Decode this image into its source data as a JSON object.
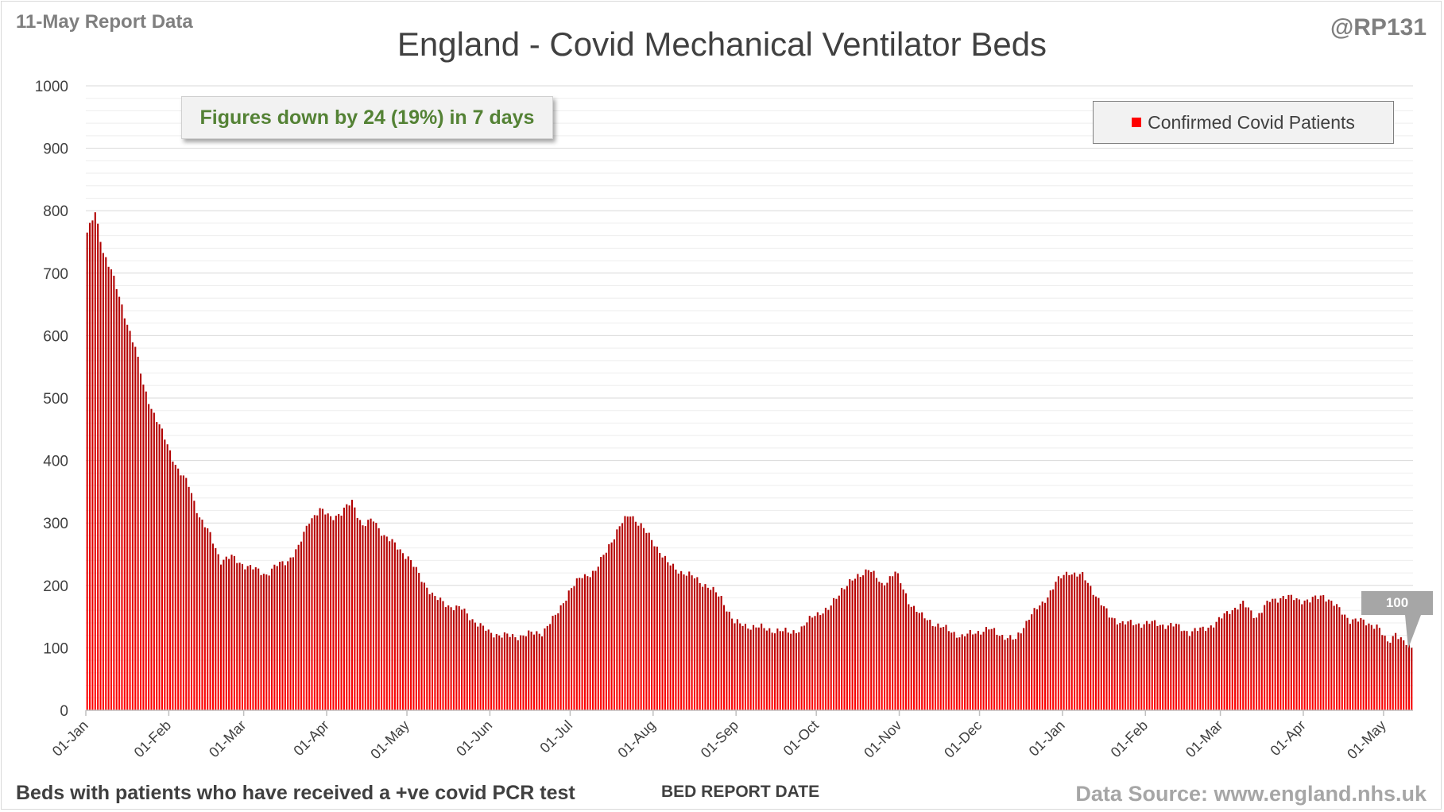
{
  "report_label": "11-May Report Data",
  "handle": "@RP131",
  "footnote": "Beds with patients who have received a +ve covid PCR test",
  "source": "Data Source: www.england.nhs.uk",
  "callout": "Figures down by 24 (19%) in 7 days",
  "colors": {
    "bar_top": "#c00000",
    "bar_bottom": "#ff0000",
    "callout_text": "#548235",
    "label_box": "#a6a6a6"
  },
  "chart_data": {
    "type": "bar",
    "title": "England - Covid Mechanical Ventilator Beds",
    "xlabel": "BED REPORT DATE",
    "ylabel": "",
    "ylim": [
      0,
      1000
    ],
    "yticks": [
      0,
      100,
      200,
      300,
      400,
      500,
      600,
      700,
      800,
      900,
      1000
    ],
    "x_start": "2021-01-01",
    "x_end": "2022-05-11",
    "xtick_labels": [
      "01-Jan",
      "01-Feb",
      "01-Mar",
      "01-Apr",
      "01-May",
      "01-Jun",
      "01-Jul",
      "01-Aug",
      "01-Sep",
      "01-Oct",
      "01-Nov",
      "01-Dec",
      "01-Jan",
      "01-Feb",
      "01-Mar",
      "01-Apr",
      "01-May"
    ],
    "xtick_dates": [
      "2021-01-01",
      "2021-02-01",
      "2021-03-01",
      "2021-04-01",
      "2021-05-01",
      "2021-06-01",
      "2021-07-01",
      "2021-08-01",
      "2021-09-01",
      "2021-10-01",
      "2021-11-01",
      "2021-12-01",
      "2022-01-01",
      "2022-02-01",
      "2022-03-01",
      "2022-04-01",
      "2022-05-01"
    ],
    "series": [
      {
        "name": "Confirmed Covid Patients",
        "points": [
          [
            "2021-01-01",
            765
          ],
          [
            "2021-01-04",
            795
          ],
          [
            "2021-01-07",
            735
          ],
          [
            "2021-01-10",
            705
          ],
          [
            "2021-01-13",
            660
          ],
          [
            "2021-01-16",
            620
          ],
          [
            "2021-01-19",
            580
          ],
          [
            "2021-01-22",
            520
          ],
          [
            "2021-01-25",
            485
          ],
          [
            "2021-01-28",
            455
          ],
          [
            "2021-01-31",
            425
          ],
          [
            "2021-02-04",
            385
          ],
          [
            "2021-02-08",
            360
          ],
          [
            "2021-02-12",
            310
          ],
          [
            "2021-02-16",
            280
          ],
          [
            "2021-02-20",
            240
          ],
          [
            "2021-02-24",
            245
          ],
          [
            "2021-03-01",
            232
          ],
          [
            "2021-03-05",
            225
          ],
          [
            "2021-03-09",
            218
          ],
          [
            "2021-03-13",
            232
          ],
          [
            "2021-03-17",
            240
          ],
          [
            "2021-03-21",
            260
          ],
          [
            "2021-03-25",
            305
          ],
          [
            "2021-03-29",
            320
          ],
          [
            "2021-04-02",
            310
          ],
          [
            "2021-04-06",
            315
          ],
          [
            "2021-04-10",
            335
          ],
          [
            "2021-04-14",
            295
          ],
          [
            "2021-04-18",
            305
          ],
          [
            "2021-04-22",
            280
          ],
          [
            "2021-04-26",
            265
          ],
          [
            "2021-05-01",
            245
          ],
          [
            "2021-05-06",
            210
          ],
          [
            "2021-05-11",
            180
          ],
          [
            "2021-05-16",
            168
          ],
          [
            "2021-05-21",
            162
          ],
          [
            "2021-05-26",
            142
          ],
          [
            "2021-05-31",
            125
          ],
          [
            "2021-06-05",
            120
          ],
          [
            "2021-06-10",
            118
          ],
          [
            "2021-06-15",
            122
          ],
          [
            "2021-06-20",
            125
          ],
          [
            "2021-06-25",
            150
          ],
          [
            "2021-06-30",
            190
          ],
          [
            "2021-07-05",
            215
          ],
          [
            "2021-07-10",
            222
          ],
          [
            "2021-07-15",
            265
          ],
          [
            "2021-07-20",
            300
          ],
          [
            "2021-07-23",
            315
          ],
          [
            "2021-07-27",
            295
          ],
          [
            "2021-08-01",
            268
          ],
          [
            "2021-08-06",
            235
          ],
          [
            "2021-08-11",
            222
          ],
          [
            "2021-08-16",
            212
          ],
          [
            "2021-08-21",
            198
          ],
          [
            "2021-08-26",
            180
          ],
          [
            "2021-08-31",
            140
          ],
          [
            "2021-09-05",
            135
          ],
          [
            "2021-09-10",
            132
          ],
          [
            "2021-09-15",
            128
          ],
          [
            "2021-09-20",
            125
          ],
          [
            "2021-09-25",
            130
          ],
          [
            "2021-09-30",
            155
          ],
          [
            "2021-10-05",
            160
          ],
          [
            "2021-10-10",
            195
          ],
          [
            "2021-10-15",
            210
          ],
          [
            "2021-10-20",
            228
          ],
          [
            "2021-10-25",
            200
          ],
          [
            "2021-10-30",
            222
          ],
          [
            "2021-11-04",
            175
          ],
          [
            "2021-11-09",
            150
          ],
          [
            "2021-11-14",
            138
          ],
          [
            "2021-11-19",
            128
          ],
          [
            "2021-11-24",
            118
          ],
          [
            "2021-11-29",
            125
          ],
          [
            "2021-12-04",
            130
          ],
          [
            "2021-12-09",
            120
          ],
          [
            "2021-12-14",
            112
          ],
          [
            "2021-12-19",
            150
          ],
          [
            "2021-12-24",
            170
          ],
          [
            "2021-12-29",
            205
          ],
          [
            "2022-01-03",
            222
          ],
          [
            "2022-01-08",
            215
          ],
          [
            "2022-01-13",
            185
          ],
          [
            "2022-01-18",
            150
          ],
          [
            "2022-01-23",
            140
          ],
          [
            "2022-01-28",
            138
          ],
          [
            "2022-02-02",
            140
          ],
          [
            "2022-02-07",
            137
          ],
          [
            "2022-02-12",
            135
          ],
          [
            "2022-02-17",
            125
          ],
          [
            "2022-02-22",
            130
          ],
          [
            "2022-02-27",
            140
          ],
          [
            "2022-03-04",
            160
          ],
          [
            "2022-03-09",
            170
          ],
          [
            "2022-03-14",
            150
          ],
          [
            "2022-03-19",
            175
          ],
          [
            "2022-03-24",
            182
          ],
          [
            "2022-03-29",
            178
          ],
          [
            "2022-04-03",
            175
          ],
          [
            "2022-04-08",
            185
          ],
          [
            "2022-04-13",
            165
          ],
          [
            "2022-04-18",
            145
          ],
          [
            "2022-04-23",
            142
          ],
          [
            "2022-04-28",
            135
          ],
          [
            "2022-05-02",
            108
          ],
          [
            "2022-05-05",
            125
          ],
          [
            "2022-05-08",
            108
          ],
          [
            "2022-05-11",
            100
          ]
        ]
      }
    ],
    "last_value_label": "100"
  }
}
